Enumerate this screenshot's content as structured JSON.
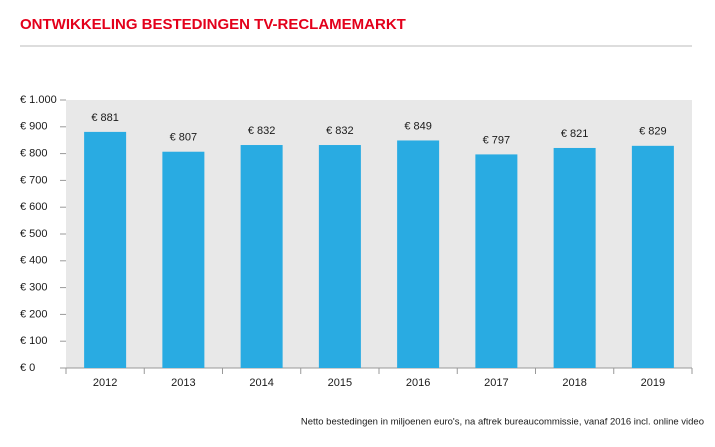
{
  "chart_data": {
    "type": "bar",
    "title": "ONTWIKKELING BESTEDINGEN TV-RECLAMEMARKT",
    "footnote": "Netto bestedingen in miljoenen euro's, na aftrek bureaucommissie, vanaf 2016 incl. online video",
    "categories": [
      "2012",
      "2013",
      "2014",
      "2015",
      "2016",
      "2017",
      "2018",
      "2019"
    ],
    "values": [
      881,
      807,
      832,
      832,
      849,
      797,
      821,
      829
    ],
    "value_labels": [
      "€ 881",
      "€ 807",
      "€ 832",
      "€ 832",
      "€ 849",
      "€ 797",
      "€ 821",
      "€ 829"
    ],
    "color": "#29abe2",
    "ylim": [
      0,
      1000
    ],
    "yticks": [
      {
        "value": 0,
        "label": "€ 0"
      },
      {
        "value": 100,
        "label": "€ 100"
      },
      {
        "value": 200,
        "label": "€ 200"
      },
      {
        "value": 300,
        "label": "€ 300"
      },
      {
        "value": 400,
        "label": "€ 400"
      },
      {
        "value": 500,
        "label": "€ 500"
      },
      {
        "value": 600,
        "label": "€ 600"
      },
      {
        "value": 700,
        "label": "€ 700"
      },
      {
        "value": 800,
        "label": "€ 800"
      },
      {
        "value": 900,
        "label": "€ 900"
      },
      {
        "value": 1000,
        "label": "€ 1.000"
      }
    ]
  }
}
